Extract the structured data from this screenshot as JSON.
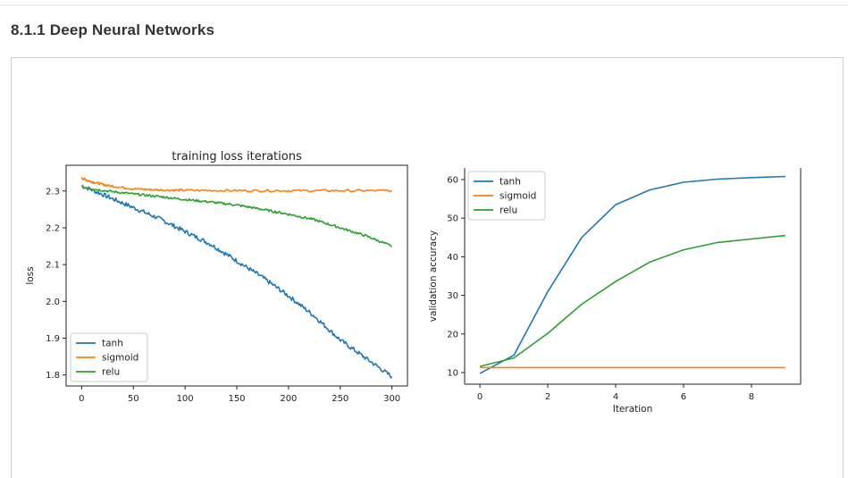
{
  "section_title": "8.1.1 Deep Neural Networks",
  "chart_data": [
    {
      "type": "line",
      "title": "training loss iterations",
      "xlabel": "",
      "ylabel": "loss",
      "xlim": [
        -15,
        315
      ],
      "ylim": [
        1.77,
        2.37
      ],
      "xticks": [
        0,
        50,
        100,
        150,
        200,
        250,
        300
      ],
      "yticks": [
        1.8,
        1.9,
        2.0,
        2.1,
        2.2,
        2.3
      ],
      "ytick_labels": [
        "1.8",
        "1.9",
        "2.0",
        "2.1",
        "2.2",
        "2.3"
      ],
      "legend": "lower-left",
      "grid": false,
      "series": [
        {
          "name": "tanh",
          "color": "#1f77b4",
          "x": [
            0,
            25,
            50,
            75,
            100,
            125,
            150,
            175,
            200,
            225,
            250,
            275,
            300
          ],
          "y": [
            2.315,
            2.285,
            2.255,
            2.225,
            2.19,
            2.155,
            2.11,
            2.065,
            2.015,
            1.96,
            1.895,
            1.845,
            1.795
          ]
        },
        {
          "name": "sigmoid",
          "color": "#ff7f0e",
          "x": [
            0,
            10,
            25,
            50,
            75,
            100,
            150,
            200,
            250,
            300
          ],
          "y": [
            2.335,
            2.325,
            2.315,
            2.306,
            2.303,
            2.302,
            2.301,
            2.301,
            2.301,
            2.301
          ]
        },
        {
          "name": "relu",
          "color": "#2ca02c",
          "x": [
            0,
            25,
            50,
            75,
            100,
            125,
            150,
            175,
            200,
            225,
            250,
            275,
            300
          ],
          "y": [
            2.31,
            2.3,
            2.292,
            2.285,
            2.277,
            2.27,
            2.262,
            2.25,
            2.237,
            2.222,
            2.2,
            2.178,
            2.15
          ]
        }
      ]
    },
    {
      "type": "line",
      "title": "",
      "xlabel": "Iteration",
      "ylabel": "validation accuracy",
      "xlim": [
        -0.45,
        9.45
      ],
      "ylim": [
        7,
        63
      ],
      "xticks": [
        0,
        2,
        4,
        6,
        8
      ],
      "yticks": [
        10,
        20,
        30,
        40,
        50,
        60
      ],
      "legend": "top-left",
      "grid": false,
      "series": [
        {
          "name": "tanh",
          "color": "#1f77b4",
          "x": [
            0,
            1,
            2,
            3,
            4,
            5,
            6,
            7,
            8,
            9
          ],
          "y": [
            9.8,
            14.5,
            31,
            45,
            53.5,
            57.3,
            59.3,
            60.1,
            60.5,
            60.8
          ]
        },
        {
          "name": "sigmoid",
          "color": "#ff7f0e",
          "x": [
            0,
            1,
            2,
            3,
            4,
            5,
            6,
            7,
            8,
            9
          ],
          "y": [
            11.3,
            11.3,
            11.3,
            11.3,
            11.3,
            11.3,
            11.3,
            11.3,
            11.3,
            11.3
          ]
        },
        {
          "name": "relu",
          "color": "#2ca02c",
          "x": [
            0,
            1,
            2,
            3,
            4,
            5,
            6,
            7,
            8,
            9
          ],
          "y": [
            11.6,
            13.8,
            20.2,
            27.7,
            33.6,
            38.6,
            41.8,
            43.7,
            44.6,
            45.5
          ]
        }
      ]
    }
  ]
}
